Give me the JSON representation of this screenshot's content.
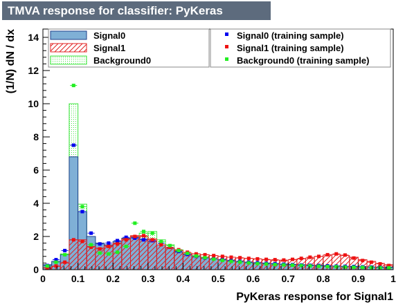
{
  "title": "TMVA response for classifier: PyKeras",
  "colors": {
    "signal0_fill": "#7fb0d6",
    "signal0_line": "#1d3f8a",
    "signal0_marker": "#0000ee",
    "signal1_line": "#e02020",
    "signal1_marker": "#ee1111",
    "background0_line": "#3ee53e",
    "background0_marker": "#22ee22",
    "title_box": "#5d6b7d"
  },
  "chart_data": {
    "type": "histogram",
    "xlabel": "PyKeras response for Signal1",
    "ylabel": "(1/N) dN / dx",
    "xlim": [
      0,
      1
    ],
    "ylim": [
      0,
      14.5
    ],
    "xticks": [
      "0",
      "0.1",
      "0.2",
      "0.3",
      "0.4",
      "0.5",
      "0.6",
      "0.7",
      "0.8",
      "0.9",
      "1"
    ],
    "yticks": [
      "0",
      "2",
      "4",
      "6",
      "8",
      "10",
      "12",
      "14"
    ],
    "bin_width": 0.025,
    "bin_edges_start": 0,
    "legend": {
      "left": [
        "Signal0",
        "Signal1",
        "Background0"
      ],
      "right": [
        "Signal0 (training sample)",
        "Signal1 (training sample)",
        "Background0 (training sample)"
      ]
    },
    "series": [
      {
        "name": "Signal0",
        "style": "filled",
        "values": [
          0.3,
          0.5,
          0.9,
          6.8,
          3.5,
          2.0,
          1.6,
          1.5,
          1.7,
          1.9,
          1.95,
          1.85,
          1.7,
          1.5,
          1.3,
          1.05,
          0.9,
          0.8,
          0.72,
          0.65,
          0.6,
          0.55,
          0.5,
          0.45,
          0.42,
          0.4,
          0.37,
          0.34,
          0.32,
          0.3,
          0.28,
          0.26,
          0.24,
          0.22,
          0.2,
          0.2,
          0.18,
          0.16,
          0.15,
          0.15
        ]
      },
      {
        "name": "Signal1",
        "style": "hatched",
        "values": [
          0.1,
          0.2,
          0.4,
          1.8,
          1.8,
          1.4,
          1.3,
          1.45,
          1.6,
          1.85,
          2.05,
          2.0,
          1.85,
          1.5,
          1.3,
          1.15,
          1.0,
          0.95,
          0.9,
          0.85,
          0.8,
          0.75,
          0.7,
          0.68,
          0.65,
          0.6,
          0.58,
          0.55,
          0.6,
          0.65,
          0.7,
          0.8,
          0.88,
          0.92,
          0.85,
          0.75,
          0.6,
          0.5,
          0.38,
          0.3
        ]
      },
      {
        "name": "Background0",
        "style": "dotted",
        "values": [
          0.2,
          0.4,
          0.95,
          10.0,
          3.95,
          1.6,
          1.0,
          1.0,
          1.1,
          1.5,
          2.0,
          2.2,
          2.3,
          1.8,
          1.5,
          1.2,
          1.0,
          0.85,
          0.75,
          0.65,
          0.58,
          0.52,
          0.47,
          0.42,
          0.38,
          0.35,
          0.32,
          0.3,
          0.28,
          0.26,
          0.24,
          0.22,
          0.2,
          0.18,
          0.17,
          0.16,
          0.15,
          0.14,
          0.13,
          0.12
        ]
      },
      {
        "name": "Signal0 (training sample)",
        "style": "markers",
        "values": [
          0.25,
          0.6,
          1.15,
          7.5,
          3.5,
          2.2,
          1.55,
          1.6,
          1.75,
          1.95,
          1.9,
          1.8,
          1.75,
          1.6,
          1.35,
          1.1,
          0.92,
          0.8,
          0.7,
          0.65,
          0.6,
          0.55,
          0.5,
          0.45,
          0.42,
          0.38,
          0.36,
          0.33,
          0.3,
          0.28,
          0.26,
          0.25,
          0.23,
          0.21,
          0.2,
          0.19,
          0.17,
          0.16,
          0.15,
          0.14
        ]
      },
      {
        "name": "Signal1 (training sample)",
        "style": "markers",
        "values": [
          0.12,
          0.22,
          0.45,
          1.8,
          1.7,
          1.35,
          1.25,
          1.4,
          1.55,
          1.8,
          2.0,
          2.05,
          1.8,
          1.5,
          1.35,
          1.2,
          1.05,
          0.95,
          0.9,
          0.85,
          0.8,
          0.75,
          0.72,
          0.68,
          0.65,
          0.62,
          0.6,
          0.58,
          0.62,
          0.68,
          0.75,
          0.8,
          0.9,
          0.95,
          0.88,
          0.7,
          0.55,
          0.45,
          0.35,
          0.25
        ]
      },
      {
        "name": "Background0 (training sample)",
        "style": "markers",
        "values": [
          0.22,
          0.45,
          0.9,
          11.1,
          3.8,
          1.5,
          1.0,
          0.95,
          1.05,
          1.4,
          2.8,
          2.3,
          2.2,
          1.7,
          1.45,
          1.15,
          0.98,
          0.82,
          0.72,
          0.63,
          0.56,
          0.5,
          0.46,
          0.41,
          0.37,
          0.34,
          0.31,
          0.29,
          0.27,
          0.25,
          0.23,
          0.21,
          0.19,
          0.18,
          0.16,
          0.15,
          0.14,
          0.13,
          0.12,
          0.11
        ]
      }
    ]
  }
}
